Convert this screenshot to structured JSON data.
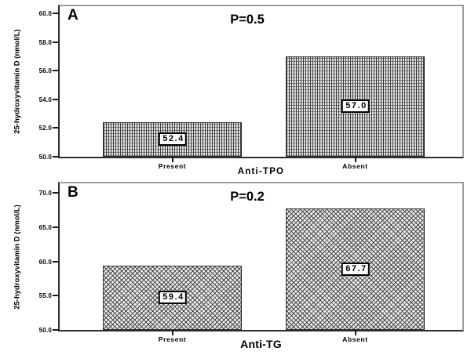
{
  "figure": {
    "background": "#ffffff",
    "style": {
      "bar_fill_a": "#e3e3e3",
      "bar_fill_b": "#ececec",
      "hatch_color": "#3c3c3c",
      "axis_color": "#2d2d2d",
      "box_color": "#9c9c9c"
    }
  },
  "chart_data": [
    {
      "type": "bar",
      "panel_label": "A",
      "annotation": "P=0.5",
      "xlabel": "Anti-TPO",
      "ylabel": "25-hydroxyvitamin D (nmol/L)",
      "categories": [
        "Present",
        "Absent"
      ],
      "values": [
        52.4,
        57.0
      ],
      "value_labels": [
        "52.4",
        "57.0"
      ],
      "ylim": [
        50.0,
        60.0
      ],
      "yticks": [
        50.0,
        52.0,
        54.0,
        56.0,
        58.0,
        60.0
      ],
      "ytick_labels": [
        "50.0",
        "52.0",
        "54.0",
        "56.0",
        "58.0",
        "60.0"
      ],
      "bar_pattern": "grid",
      "grid": false,
      "legend": "none"
    },
    {
      "type": "bar",
      "panel_label": "B",
      "annotation": "P=0.2",
      "xlabel": "Anti-TG",
      "ylabel": "25-hydroxyvitamin D (nmol/L)",
      "categories": [
        "Present",
        "Absent"
      ],
      "values": [
        59.4,
        67.7
      ],
      "value_labels": [
        "59.4",
        "67.7"
      ],
      "ylim": [
        50.0,
        70.0
      ],
      "yticks": [
        50.0,
        55.0,
        60.0,
        65.0,
        70.0
      ],
      "ytick_labels": [
        "50.0",
        "55.0",
        "60.0",
        "65.0",
        "70.0"
      ],
      "bar_pattern": "diamond",
      "grid": false,
      "legend": "none"
    }
  ]
}
